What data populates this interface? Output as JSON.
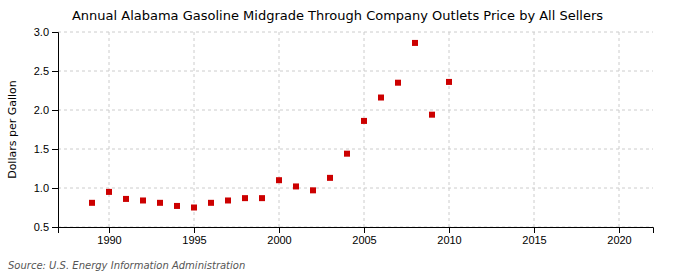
{
  "chart_data": {
    "type": "scatter",
    "title": "Annual Alabama Gasoline Midgrade Through Company Outlets Price by All Sellers",
    "ylabel": "Dollars per Gallon",
    "annotation": "Source: U.S. Energy Information Administration",
    "x": [
      1989,
      1990,
      1991,
      1992,
      1993,
      1994,
      1995,
      1996,
      1997,
      1998,
      1999,
      2000,
      2001,
      2002,
      2003,
      2004,
      2005,
      2006,
      2007,
      2008,
      2009,
      2010
    ],
    "values": [
      0.81,
      0.95,
      0.86,
      0.84,
      0.81,
      0.77,
      0.75,
      0.81,
      0.84,
      0.87,
      0.87,
      1.1,
      1.02,
      0.97,
      1.13,
      1.44,
      1.86,
      2.16,
      2.35,
      2.86,
      1.94,
      2.36
    ],
    "color": "#cc0000",
    "marker": "square",
    "xlim": [
      1987,
      2022
    ],
    "ylim": [
      0.5,
      3.0
    ],
    "xticks": [
      1990,
      1995,
      2000,
      2005,
      2010,
      2015,
      2020
    ],
    "yticks": [
      0.5,
      {
        "value": 1,
        "label": "1.0"
      },
      1.5,
      {
        "value": 2,
        "label": "2.0"
      },
      2.5,
      {
        "value": 3,
        "label": "3.0"
      }
    ],
    "grid": true
  }
}
